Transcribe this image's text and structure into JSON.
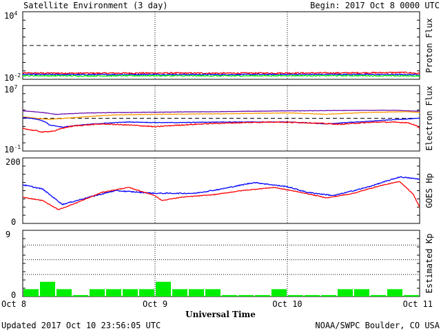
{
  "header": {
    "title": "Satellite Environment (3 day)",
    "begin": "Begin:  2017 Oct 8 0000 UTC"
  },
  "footer": {
    "updated": "Updated 2017 Oct 10 23:56:05 UTC",
    "credit": "NOAA/SWPC Boulder, CO USA"
  },
  "x_axis": {
    "label": "Universal Time",
    "ticks": [
      "Oct 8",
      "Oct 9",
      "Oct 10",
      "Oct 11"
    ]
  },
  "chart_data": [
    {
      "type": "line",
      "panel": "proton",
      "ylabel": "Proton Flux",
      "yscale": "log",
      "ylim": [
        0.01,
        10000
      ],
      "ytick_labels": {
        "top_base": "10",
        "top_exp": "4",
        "bottom_base": "10",
        "bottom_exp": "-2"
      },
      "threshold": 10,
      "x_range_days": [
        0,
        3
      ],
      "series": [
        {
          "color": "#ff0000",
          "noise": 0.06,
          "points": [
            [
              0,
              0.036
            ],
            [
              0.5,
              0.035
            ],
            [
              1,
              0.036
            ],
            [
              1.5,
              0.035
            ],
            [
              2,
              0.036
            ],
            [
              2.5,
              0.037
            ],
            [
              2.9,
              0.04
            ],
            [
              3,
              0.032
            ]
          ]
        },
        {
          "color": "#0000ff",
          "noise": 0.05,
          "points": [
            [
              0,
              0.027
            ],
            [
              0.5,
              0.026
            ],
            [
              1,
              0.027
            ],
            [
              1.5,
              0.026
            ],
            [
              2,
              0.027
            ],
            [
              2.5,
              0.027
            ],
            [
              3,
              0.026
            ]
          ]
        },
        {
          "color": "#00ee00",
          "noise": 0.05,
          "points": [
            [
              0,
              0.021
            ],
            [
              0.5,
              0.02
            ],
            [
              1,
              0.021
            ],
            [
              1.5,
              0.02
            ],
            [
              2,
              0.021
            ],
            [
              2.5,
              0.021
            ],
            [
              3,
              0.02
            ]
          ]
        }
      ]
    },
    {
      "type": "line",
      "panel": "electron",
      "ylabel": "Electron Flux",
      "yscale": "log",
      "ylim": [
        0.1,
        10000000
      ],
      "ytick_labels": {
        "top_base": "10",
        "top_exp": "7",
        "bottom_base": "10",
        "bottom_exp": "-1"
      },
      "threshold": 1000,
      "x_range_days": [
        0,
        3
      ],
      "series": [
        {
          "color": "#6a0dad",
          "noise": 0.02,
          "points": [
            [
              0,
              8000
            ],
            [
              0.1,
              6000
            ],
            [
              0.25,
              3000
            ],
            [
              0.5,
              4500
            ],
            [
              1,
              5500
            ],
            [
              1.5,
              6500
            ],
            [
              2,
              8000
            ],
            [
              2.5,
              9000
            ],
            [
              2.8,
              9500
            ],
            [
              3,
              7000
            ]
          ]
        },
        {
          "color": "#ff9900",
          "noise": 0.03,
          "points": [
            [
              0,
              1500
            ],
            [
              0.1,
              1000
            ],
            [
              0.2,
              700
            ],
            [
              0.4,
              1200
            ],
            [
              0.7,
              2500
            ],
            [
              1,
              3000
            ],
            [
              1.5,
              3500
            ],
            [
              2,
              4500
            ],
            [
              2.3,
              3000
            ],
            [
              2.6,
              5000
            ],
            [
              2.9,
              6500
            ],
            [
              3,
              5000
            ]
          ]
        },
        {
          "color": "#0000ff",
          "noise": 0.03,
          "points": [
            [
              0,
              1200
            ],
            [
              0.1,
              800
            ],
            [
              0.2,
              150
            ],
            [
              0.3,
              80
            ],
            [
              0.5,
              180
            ],
            [
              0.8,
              350
            ],
            [
              1,
              300
            ],
            [
              1.2,
              300
            ],
            [
              1.5,
              350
            ],
            [
              2,
              350
            ],
            [
              2.3,
              200
            ],
            [
              2.6,
              400
            ],
            [
              2.9,
              800
            ],
            [
              3,
              1000
            ]
          ]
        },
        {
          "color": "#ff0000",
          "noise": 0.06,
          "points": [
            [
              0,
              60
            ],
            [
              0.05,
              40
            ],
            [
              0.15,
              20
            ],
            [
              0.25,
              30
            ],
            [
              0.4,
              120
            ],
            [
              0.6,
              200
            ],
            [
              0.8,
              150
            ],
            [
              1,
              90
            ],
            [
              1.2,
              150
            ],
            [
              1.5,
              250
            ],
            [
              1.9,
              350
            ],
            [
              2.1,
              300
            ],
            [
              2.4,
              180
            ],
            [
              2.7,
              350
            ],
            [
              2.9,
              300
            ],
            [
              3,
              60
            ]
          ]
        }
      ]
    },
    {
      "type": "line",
      "panel": "goes_hp",
      "ylabel": "GOES Hp",
      "ylim": [
        0,
        200
      ],
      "yticks": [
        "0",
        "200"
      ],
      "x_range_days": [
        0,
        3
      ],
      "series": [
        {
          "color": "#0000ff",
          "noise": 1.5,
          "points": [
            [
              0,
              118
            ],
            [
              0.15,
              105
            ],
            [
              0.3,
              58
            ],
            [
              0.5,
              80
            ],
            [
              0.7,
              100
            ],
            [
              1,
              92
            ],
            [
              1.3,
              92
            ],
            [
              1.5,
              105
            ],
            [
              1.75,
              125
            ],
            [
              2,
              112
            ],
            [
              2.15,
              95
            ],
            [
              2.35,
              85
            ],
            [
              2.6,
              110
            ],
            [
              2.85,
              142
            ],
            [
              3,
              135
            ]
          ]
        },
        {
          "color": "#ff0000",
          "noise": 1.0,
          "points": [
            [
              0,
              80
            ],
            [
              0.15,
              70
            ],
            [
              0.27,
              42
            ],
            [
              0.4,
              62
            ],
            [
              0.6,
              95
            ],
            [
              0.8,
              110
            ],
            [
              1,
              85
            ],
            [
              1.05,
              70
            ],
            [
              1.2,
              80
            ],
            [
              1.45,
              88
            ],
            [
              1.65,
              100
            ],
            [
              1.9,
              110
            ],
            [
              2.1,
              95
            ],
            [
              2.3,
              78
            ],
            [
              2.5,
              92
            ],
            [
              2.7,
              115
            ],
            [
              2.85,
              128
            ],
            [
              2.95,
              90
            ],
            [
              3,
              50
            ]
          ]
        }
      ]
    },
    {
      "type": "bar",
      "panel": "kp",
      "ylabel": "Estimated Kp",
      "ylim": [
        0,
        9
      ],
      "yticks": [
        "0",
        "9"
      ],
      "gridlines": [
        3,
        5,
        7,
        9
      ],
      "bar_color": "#00ee00",
      "interval_hours": 3,
      "values": [
        1.0,
        2.0,
        1.0,
        0.2,
        1.0,
        1.0,
        1.0,
        1.0,
        2.0,
        1.0,
        1.0,
        1.0,
        0.2,
        0.2,
        0.2,
        1.0,
        0.2,
        0.2,
        0.2,
        1.0,
        1.0,
        0.2,
        1.0,
        0.2
      ]
    }
  ]
}
